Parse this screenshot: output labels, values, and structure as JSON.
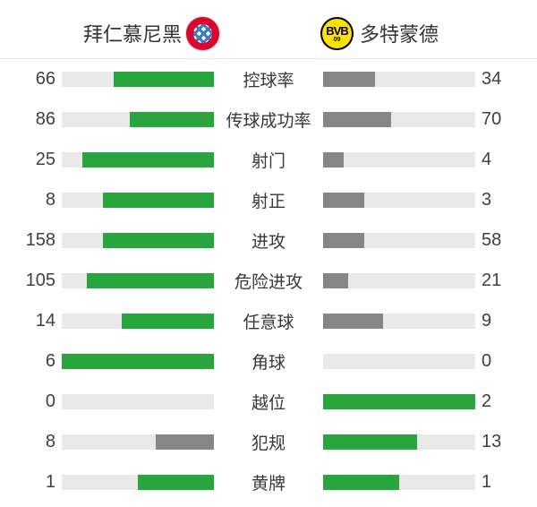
{
  "header": {
    "home_team": "拜仁慕尼黑",
    "away_team": "多特蒙德",
    "away_logo": {
      "text": "BVB",
      "sub": "09"
    }
  },
  "colors": {
    "leading_bar": "#29a53d",
    "trailing_bar": "#868686",
    "track": "#e9e9e9",
    "bayern_red": "#dc052d",
    "bayern_blue": "#3e7cc1",
    "bvb_yellow": "#fde100",
    "text": "#3a3a3a"
  },
  "chart_data": {
    "type": "bar",
    "orientation": "horizontal_paired",
    "legend_position": "top",
    "legend": [
      "拜仁慕尼黑",
      "多特蒙德"
    ],
    "categories": [
      "控球率",
      "传球成功率",
      "射门",
      "射正",
      "进攻",
      "危险进攻",
      "任意球",
      "角球",
      "越位",
      "犯规",
      "黄牌"
    ],
    "series": [
      {
        "name": "拜仁慕尼黑",
        "values": [
          66,
          86,
          25,
          8,
          158,
          105,
          14,
          6,
          0,
          8,
          1
        ]
      },
      {
        "name": "多特蒙德",
        "values": [
          34,
          70,
          4,
          3,
          58,
          21,
          9,
          0,
          2,
          13,
          1
        ]
      }
    ],
    "scale_rule": "bar width = value / (home + away) of its row",
    "color_rule": "green when value >= opponent value, gray otherwise"
  }
}
